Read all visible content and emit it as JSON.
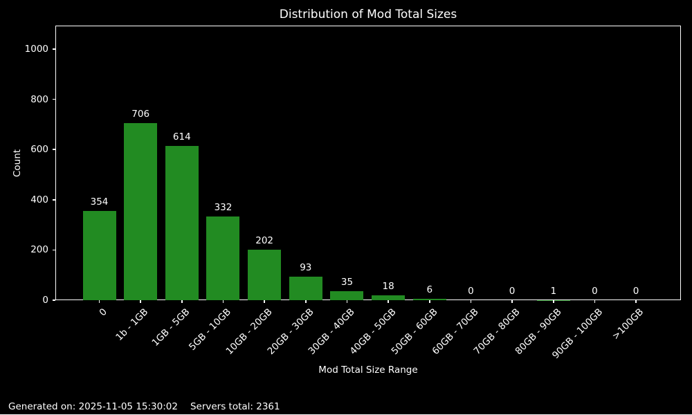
{
  "chart_data": {
    "type": "bar",
    "title": "Distribution of Mod Total Sizes",
    "xlabel": "Mod Total Size Range",
    "ylabel": "Count",
    "categories": [
      "0",
      "1b - 1GB",
      "1GB - 5GB",
      "5GB - 10GB",
      "10GB - 20GB",
      "20GB - 30GB",
      "30GB - 40GB",
      "40GB - 50GB",
      "50GB - 60GB",
      "60GB - 70GB",
      "70GB - 80GB",
      "80GB - 90GB",
      "90GB - 100GB",
      ">100GB"
    ],
    "values": [
      354,
      706,
      614,
      332,
      202,
      93,
      35,
      18,
      6,
      0,
      0,
      1,
      0,
      0
    ],
    "bar_labels": [
      "354",
      "706",
      "614",
      "332",
      "202",
      "93",
      "35",
      "18",
      "6",
      "0",
      "0",
      "1",
      "0",
      "0"
    ],
    "yticks": [
      0,
      200,
      400,
      600,
      800,
      1000
    ],
    "ytick_labels": [
      "0",
      "200",
      "400",
      "600",
      "800",
      "1000"
    ],
    "ylim": [
      0,
      1090
    ],
    "grid": false,
    "legend": null,
    "bar_color": "#228B22",
    "background_color": "#000000",
    "text_color": "#ffffff",
    "axis_color": "#ffffff"
  },
  "footer": {
    "generated_text": "Generated on: 2025-11-05 15:30:02",
    "servers_total_text": "Servers total: 2361"
  }
}
